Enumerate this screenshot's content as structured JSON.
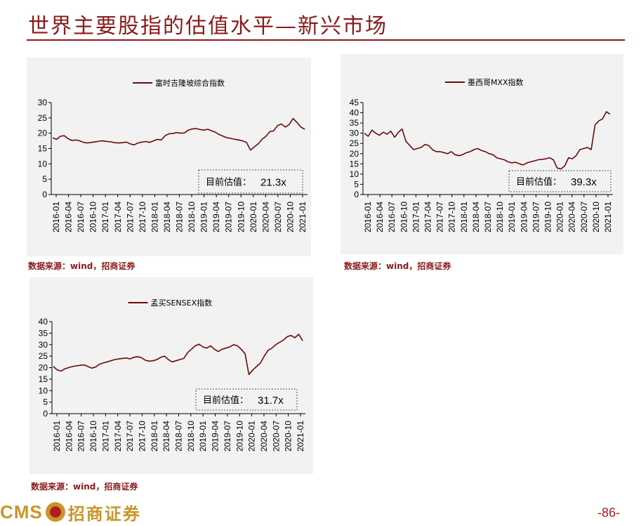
{
  "page": {
    "title": "世界主要股指的估值水平—新兴市场",
    "page_number": "-86-",
    "logo_text": "CMS",
    "logo_cn": "招商证券"
  },
  "colors": {
    "line": "#6b0a0a",
    "accent": "#8b1a1a",
    "logo_gold": "#c8962b"
  },
  "chart_data": [
    {
      "type": "line",
      "legend": "富时吉隆坡综合指数",
      "ylim": [
        0,
        30
      ],
      "yticks": [
        0,
        5,
        10,
        15,
        20,
        25,
        30
      ],
      "x_labels": [
        "2016-01",
        "2016-04",
        "2016-07",
        "2016-10",
        "2017-01",
        "2017-04",
        "2017-07",
        "2017-10",
        "2018-01",
        "2018-04",
        "2018-07",
        "2018-10",
        "2019-01",
        "2019-04",
        "2019-07",
        "2019-10",
        "2020-01",
        "2020-04",
        "2020-07",
        "2020-10",
        "2021-01"
      ],
      "series": [
        {
          "values": [
            18.5,
            18.0,
            19.0,
            19.2,
            18.2,
            17.6,
            17.8,
            17.5,
            17.0,
            16.8,
            17.0,
            17.2,
            17.4,
            17.5,
            17.3,
            17.2,
            16.9,
            16.8,
            16.9,
            17.1,
            16.5,
            16.2,
            16.8,
            17.1,
            17.3,
            17.0,
            17.5,
            18.0,
            17.8,
            19.2,
            19.8,
            19.9,
            20.2,
            20.0,
            20.1,
            21.0,
            21.4,
            21.5,
            21.2,
            21.0,
            21.3,
            20.8,
            20.3,
            19.5,
            19.0,
            18.5,
            18.3,
            18.0,
            17.8,
            17.5,
            17.0,
            14.5,
            15.5,
            16.5,
            18.0,
            19.0,
            20.5,
            20.8,
            22.5,
            23.0,
            22.0,
            22.8,
            24.8,
            23.5,
            22.0,
            21.3
          ]
        }
      ],
      "current_label": "目前估值：",
      "current_value": "21.3x"
    },
    {
      "type": "line",
      "legend": "墨西哥MXX指数",
      "ylim": [
        0,
        45
      ],
      "yticks": [
        0,
        5,
        10,
        15,
        20,
        25,
        30,
        35,
        40,
        45
      ],
      "x_labels": [
        "2016-01",
        "2016-04",
        "2016-07",
        "2016-10",
        "2017-01",
        "2017-04",
        "2017-07",
        "2017-10",
        "2018-01",
        "2018-04",
        "2018-07",
        "2018-10",
        "2019-01",
        "2019-04",
        "2019-07",
        "2019-10",
        "2020-01",
        "2020-04",
        "2020-07",
        "2020-10",
        "2021-01"
      ],
      "series": [
        {
          "values": [
            30.0,
            28.5,
            31.5,
            30.0,
            29.0,
            30.5,
            29.5,
            31.0,
            28.0,
            30.5,
            32.0,
            26.0,
            24.0,
            22.0,
            22.5,
            23.0,
            24.5,
            24.0,
            22.0,
            21.0,
            21.0,
            20.5,
            20.0,
            21.0,
            19.5,
            19.0,
            19.5,
            20.5,
            21.0,
            22.0,
            22.5,
            21.5,
            21.0,
            20.0,
            19.5,
            18.0,
            17.5,
            17.0,
            16.0,
            15.5,
            15.8,
            15.0,
            14.5,
            15.5,
            16.0,
            16.5,
            17.0,
            17.2,
            17.5,
            18.0,
            17.0,
            13.0,
            12.5,
            14.0,
            18.0,
            17.5,
            19.0,
            22.0,
            22.5,
            23.0,
            22.0,
            34.0,
            36.0,
            37.0,
            40.5,
            39.3
          ]
        }
      ],
      "current_label": "目前估值：",
      "current_value": "39.3x"
    },
    {
      "type": "line",
      "legend": "孟买SENSEX指数",
      "ylim": [
        0,
        40
      ],
      "yticks": [
        0,
        5,
        10,
        15,
        20,
        25,
        30,
        35,
        40
      ],
      "x_labels": [
        "2016-01",
        "2016-04",
        "2016-07",
        "2016-10",
        "2017-01",
        "2017-04",
        "2017-07",
        "2017-10",
        "2018-01",
        "2018-04",
        "2018-07",
        "2018-10",
        "2019-01",
        "2019-04",
        "2019-07",
        "2019-10",
        "2020-01",
        "2020-04",
        "2020-07",
        "2020-10",
        "2021-01"
      ],
      "series": [
        {
          "values": [
            20.5,
            19.0,
            18.5,
            19.5,
            20.0,
            20.5,
            20.8,
            21.0,
            21.2,
            20.5,
            19.8,
            20.2,
            21.5,
            22.0,
            22.5,
            23.0,
            23.5,
            23.8,
            24.0,
            24.2,
            23.8,
            24.5,
            24.8,
            24.3,
            23.2,
            22.8,
            23.0,
            23.5,
            24.5,
            25.0,
            23.5,
            22.5,
            23.0,
            23.5,
            24.0,
            26.5,
            28.0,
            29.5,
            30.2,
            29.0,
            28.5,
            29.5,
            28.0,
            27.0,
            28.0,
            28.5,
            29.0,
            30.0,
            29.5,
            28.0,
            26.0,
            17.0,
            19.0,
            20.5,
            22.0,
            25.0,
            27.5,
            28.5,
            30.0,
            31.0,
            32.0,
            33.5,
            34.0,
            33.0,
            34.5,
            31.7
          ]
        }
      ],
      "current_label": "目前估值：",
      "current_value": "31.7x"
    }
  ],
  "sources": [
    "数据来源：wind，招商证券",
    "数据来源：wind，招商证券",
    "数据来源：wind，招商证券"
  ]
}
